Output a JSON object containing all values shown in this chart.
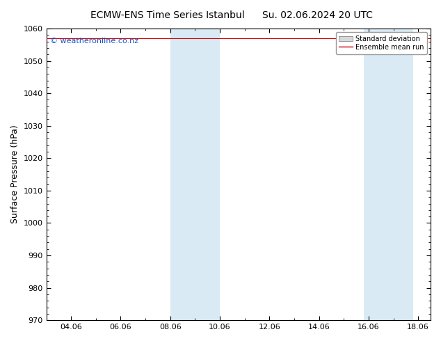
{
  "title": "ECMW-ENS Time Series Istanbul",
  "title2": "Su. 02.06.2024 20 UTC",
  "ylabel": "Surface Pressure (hPa)",
  "ylim": [
    970,
    1060
  ],
  "yticks": [
    970,
    980,
    990,
    1000,
    1010,
    1020,
    1030,
    1040,
    1050,
    1060
  ],
  "xtick_labels": [
    "04.06",
    "06.06",
    "08.06",
    "10.06",
    "12.06",
    "14.06",
    "16.06",
    "18.06"
  ],
  "xtick_positions": [
    1,
    3,
    5,
    7,
    9,
    11,
    13,
    15
  ],
  "xlim": [
    0,
    15.5
  ],
  "shaded_bands": [
    {
      "xmin": 5.0,
      "xmax": 7.0,
      "color": "#daeaf5"
    },
    {
      "xmin": 12.8,
      "xmax": 14.8,
      "color": "#daeaf5"
    }
  ],
  "ensemble_mean_color": "#cc0000",
  "watermark": "© weatheronline.co.nz",
  "watermark_color": "#1155cc",
  "legend_std_label": "Standard deviation",
  "legend_mean_label": "Ensemble mean run",
  "bg_color": "#ffffff",
  "title_fontsize": 10,
  "ylabel_fontsize": 9,
  "tick_fontsize": 8
}
